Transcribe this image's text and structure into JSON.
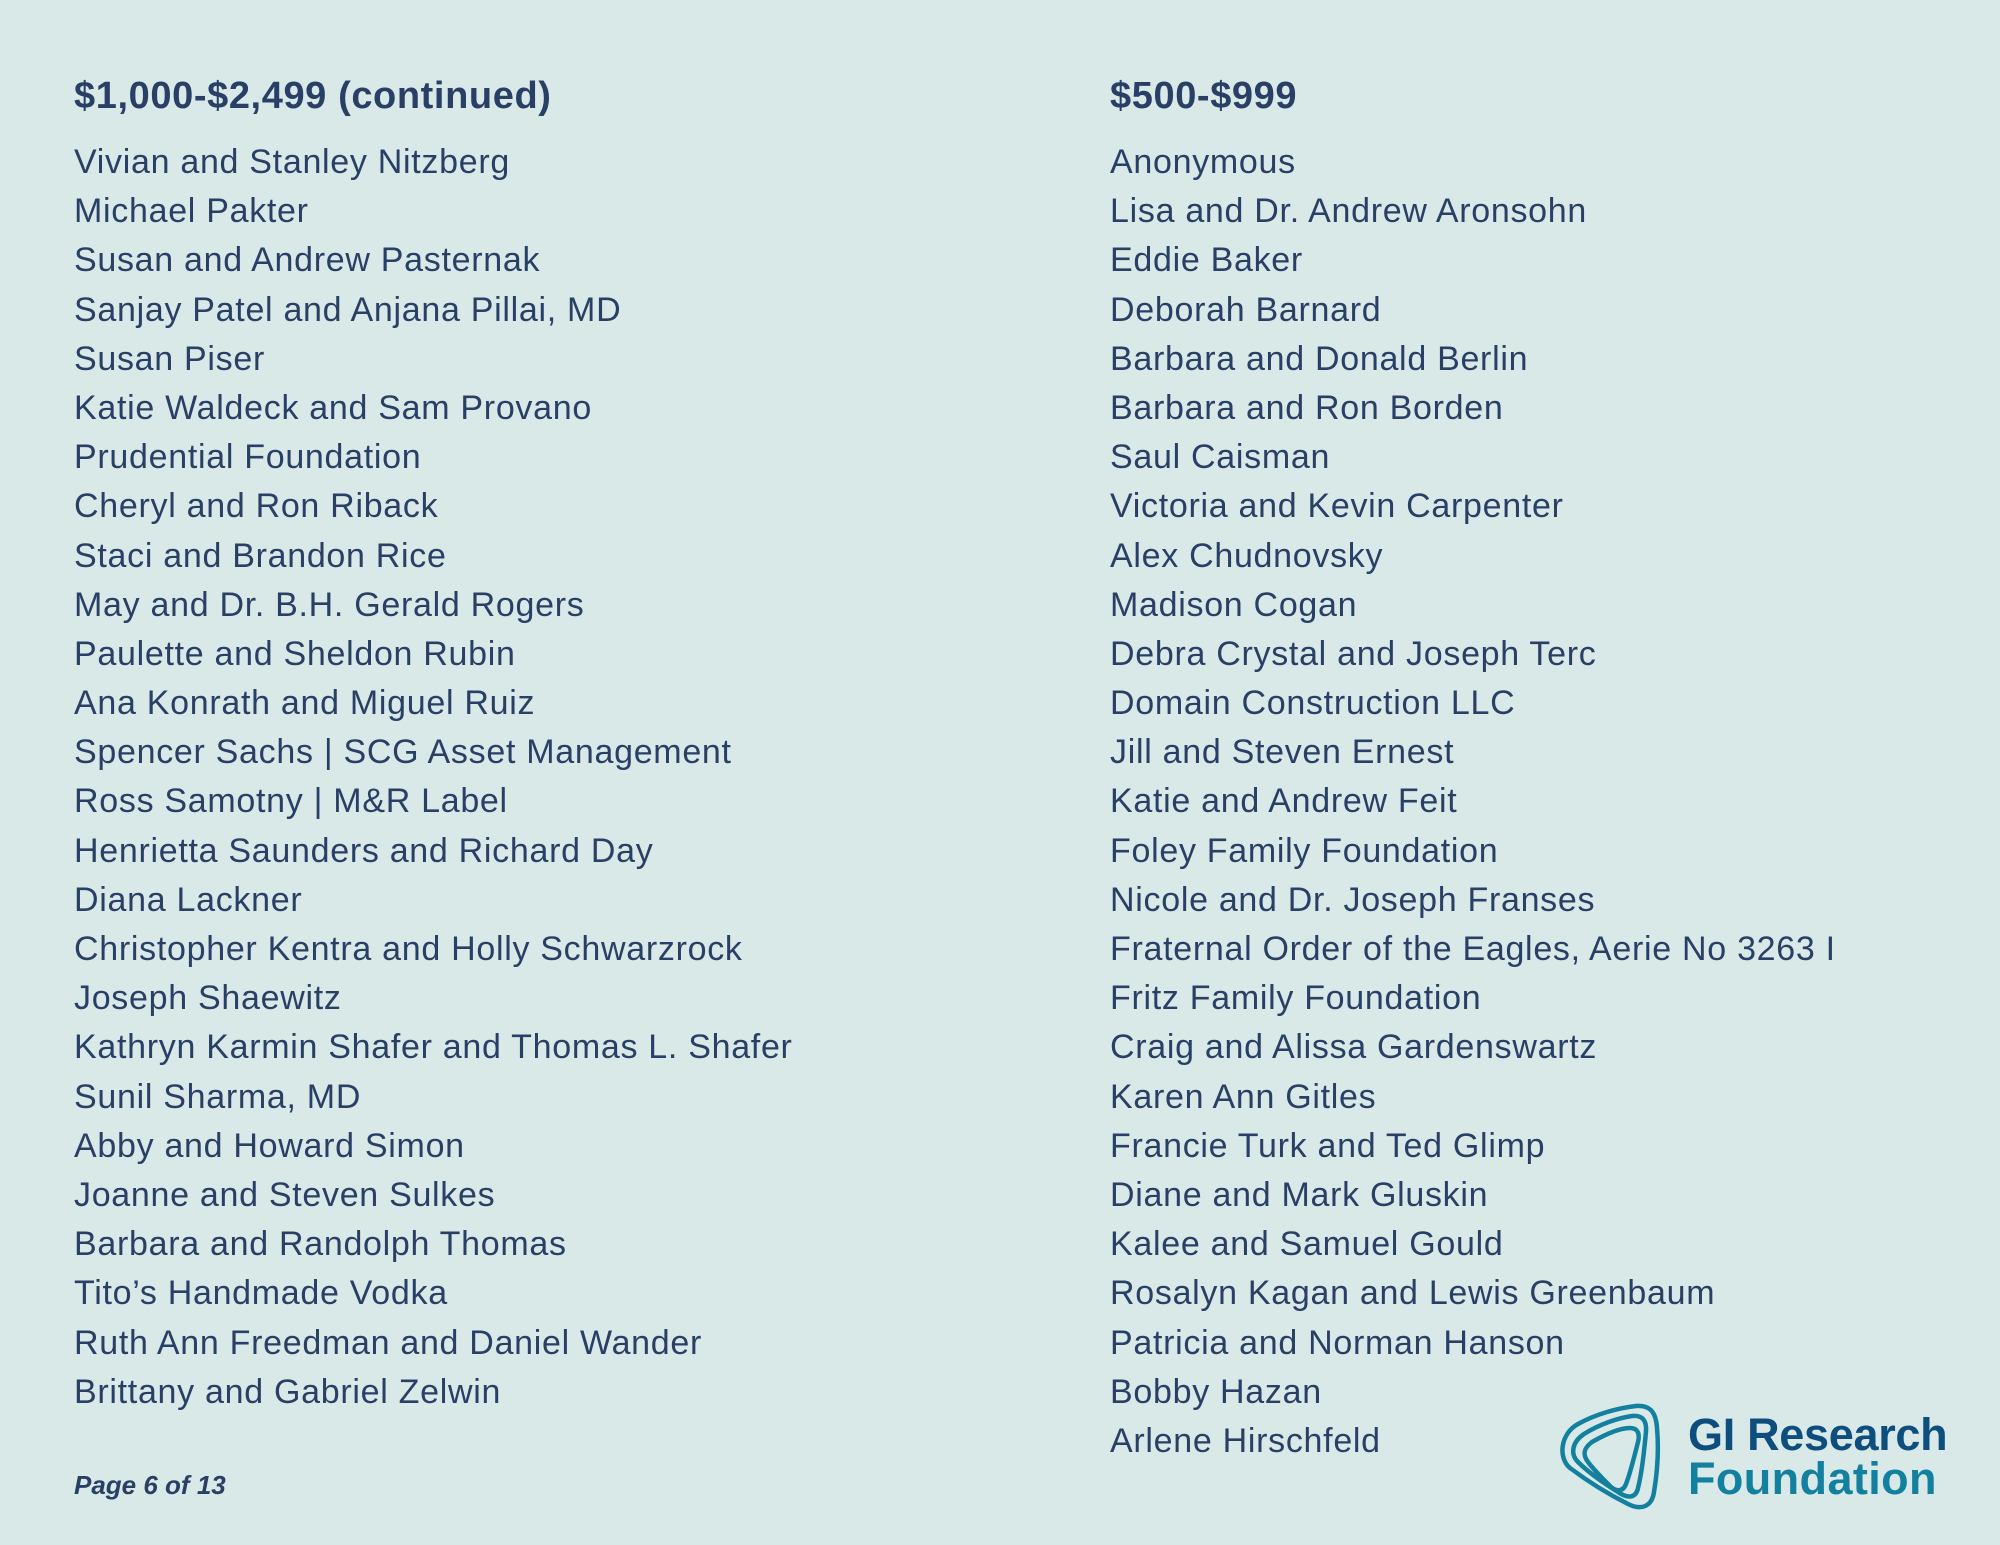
{
  "columns": [
    {
      "heading": "$1,000-$2,499 (continued)",
      "names": [
        "Vivian and Stanley Nitzberg",
        "Michael Pakter",
        "Susan and Andrew Pasternak",
        "Sanjay Patel and Anjana Pillai, MD",
        "Susan Piser",
        "Katie Waldeck and Sam Provano",
        "Prudential Foundation",
        "Cheryl and Ron Riback",
        "Staci and Brandon Rice",
        "May and Dr. B.H. Gerald Rogers",
        "Paulette and Sheldon Rubin",
        "Ana Konrath and Miguel Ruiz",
        "Spencer Sachs | SCG Asset Management",
        "Ross Samotny | M&R Label",
        "Henrietta Saunders and Richard Day",
        "Diana Lackner",
        "Christopher Kentra and Holly Schwarzrock",
        "Joseph Shaewitz",
        "Kathryn Karmin Shafer and Thomas L. Shafer",
        "Sunil Sharma, MD",
        "Abby and Howard Simon",
        "Joanne and Steven Sulkes",
        "Barbara and Randolph Thomas",
        "Tito’s Handmade Vodka",
        "Ruth Ann Freedman and Daniel Wander",
        "Brittany and Gabriel Zelwin"
      ]
    },
    {
      "heading": "$500-$999",
      "names": [
        "Anonymous",
        "Lisa and Dr. Andrew Aronsohn",
        "Eddie Baker",
        "Deborah Barnard",
        "Barbara and Donald Berlin",
        "Barbara and Ron Borden",
        "Saul Caisman",
        "Victoria and Kevin Carpenter",
        "Alex Chudnovsky",
        "Madison Cogan",
        "Debra Crystal and Joseph Terc",
        "Domain Construction LLC",
        "Jill and Steven Ernest",
        "Katie and Andrew Feit",
        "Foley Family Foundation",
        "Nicole and Dr. Joseph Franses",
        "Fraternal Order of the Eagles, Aerie No 3263 I",
        "Fritz Family Foundation",
        "Craig and Alissa Gardenswartz",
        "Karen Ann Gitles",
        "Francie Turk and Ted Glimp",
        "Diane and Mark Gluskin",
        "Kalee and Samuel Gould",
        "Rosalyn Kagan and Lewis Greenbaum",
        "Patricia and Norman Hanson",
        "Bobby Hazan",
        "Arlene Hirschfeld"
      ]
    }
  ],
  "footer": {
    "page_label": "Page 6 of 13"
  },
  "logo": {
    "line1": "GI Research",
    "line2": "Foundation",
    "icon": "nested-rounded-triangles-icon",
    "colors": {
      "dark": "#0e4e7d",
      "teal": "#13809f"
    }
  },
  "colors": {
    "background": "#d9e9e8",
    "text": "#2a3f66"
  }
}
